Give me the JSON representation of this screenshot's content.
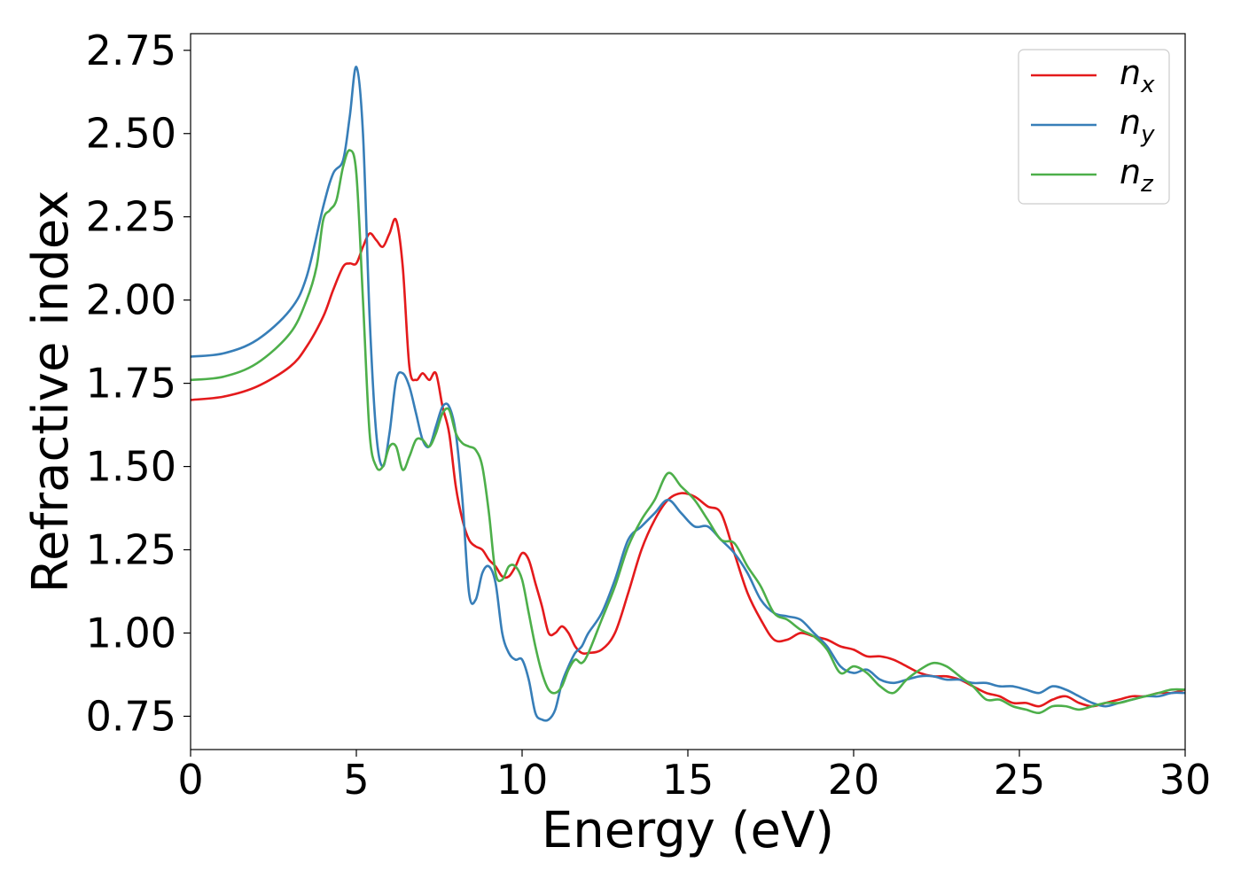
{
  "chart_data": {
    "type": "line",
    "title": "",
    "xlabel": "Energy (eV)",
    "ylabel": "Refractive index",
    "xlim": [
      0,
      30
    ],
    "ylim": [
      0.65,
      2.8
    ],
    "xticks": [
      0,
      5,
      10,
      15,
      20,
      25,
      30
    ],
    "xtick_labels": [
      "0",
      "5",
      "10",
      "15",
      "20",
      "25",
      "30"
    ],
    "yticks": [
      0.75,
      1.0,
      1.25,
      1.5,
      1.75,
      2.0,
      2.25,
      2.5,
      2.75
    ],
    "ytick_labels": [
      "0.75",
      "1.00",
      "1.25",
      "1.50",
      "1.75",
      "2.00",
      "2.25",
      "2.50",
      "2.75"
    ],
    "grid": false,
    "legend_position": "top-right",
    "series": [
      {
        "name": "n_x",
        "label_base": "n",
        "label_sub": "x",
        "color": "#e41a1c",
        "x": [
          0,
          1,
          2,
          3,
          3.5,
          4,
          4.3,
          4.6,
          4.8,
          5.0,
          5.2,
          5.4,
          5.6,
          5.8,
          6.0,
          6.2,
          6.4,
          6.6,
          6.8,
          7.0,
          7.2,
          7.4,
          7.6,
          7.8,
          8.0,
          8.2,
          8.4,
          8.6,
          8.8,
          9.0,
          9.2,
          9.4,
          9.6,
          9.8,
          10.0,
          10.2,
          10.4,
          10.6,
          10.8,
          11.0,
          11.2,
          11.4,
          11.6,
          11.8,
          12.0,
          12.4,
          12.8,
          13.2,
          13.6,
          14.0,
          14.4,
          14.8,
          15.2,
          15.6,
          16.0,
          16.4,
          16.8,
          17.2,
          17.6,
          18.0,
          18.4,
          18.8,
          19.2,
          19.6,
          20.0,
          20.4,
          20.8,
          21.2,
          21.6,
          22.0,
          22.4,
          22.8,
          23.2,
          23.6,
          24.0,
          24.4,
          24.8,
          25.2,
          25.6,
          26.0,
          26.4,
          26.8,
          27.2,
          27.6,
          28.0,
          28.4,
          28.8,
          29.2,
          29.6,
          30.0
        ],
        "y": [
          1.7,
          1.71,
          1.74,
          1.8,
          1.86,
          1.95,
          2.03,
          2.1,
          2.11,
          2.11,
          2.16,
          2.2,
          2.18,
          2.16,
          2.2,
          2.24,
          2.1,
          1.8,
          1.76,
          1.78,
          1.76,
          1.78,
          1.68,
          1.6,
          1.44,
          1.34,
          1.28,
          1.26,
          1.25,
          1.22,
          1.2,
          1.17,
          1.17,
          1.2,
          1.24,
          1.22,
          1.15,
          1.08,
          1.0,
          1.0,
          1.02,
          1.0,
          0.96,
          0.94,
          0.94,
          0.95,
          1.0,
          1.12,
          1.25,
          1.34,
          1.4,
          1.42,
          1.41,
          1.38,
          1.36,
          1.24,
          1.12,
          1.04,
          0.98,
          0.98,
          1.0,
          0.99,
          0.98,
          0.96,
          0.95,
          0.93,
          0.93,
          0.92,
          0.9,
          0.88,
          0.87,
          0.87,
          0.86,
          0.84,
          0.82,
          0.81,
          0.79,
          0.79,
          0.78,
          0.8,
          0.81,
          0.79,
          0.78,
          0.79,
          0.8,
          0.81,
          0.81,
          0.82,
          0.82,
          0.83
        ]
      },
      {
        "name": "n_y",
        "label_base": "n",
        "label_sub": "y",
        "color": "#377eb8",
        "x": [
          0,
          1,
          2,
          3,
          3.5,
          4,
          4.3,
          4.6,
          4.8,
          5.0,
          5.2,
          5.4,
          5.6,
          5.8,
          6.0,
          6.2,
          6.4,
          6.6,
          6.8,
          7.0,
          7.2,
          7.4,
          7.6,
          7.8,
          8.0,
          8.2,
          8.4,
          8.6,
          8.8,
          9.0,
          9.2,
          9.4,
          9.6,
          9.8,
          10.0,
          10.2,
          10.4,
          10.6,
          10.8,
          11.0,
          11.2,
          11.4,
          11.6,
          11.8,
          12.0,
          12.4,
          12.8,
          13.2,
          13.6,
          14.0,
          14.4,
          14.8,
          15.2,
          15.6,
          16.0,
          16.4,
          16.8,
          17.2,
          17.6,
          18.0,
          18.4,
          18.8,
          19.2,
          19.6,
          20.0,
          20.4,
          20.8,
          21.2,
          21.6,
          22.0,
          22.4,
          22.8,
          23.2,
          23.6,
          24.0,
          24.4,
          24.8,
          25.2,
          25.6,
          26.0,
          26.4,
          26.8,
          27.2,
          27.6,
          28.0,
          28.4,
          28.8,
          29.2,
          29.6,
          30.0
        ],
        "y": [
          1.83,
          1.84,
          1.88,
          1.97,
          2.07,
          2.28,
          2.38,
          2.42,
          2.55,
          2.7,
          2.5,
          1.95,
          1.6,
          1.5,
          1.6,
          1.76,
          1.78,
          1.74,
          1.66,
          1.58,
          1.56,
          1.62,
          1.68,
          1.68,
          1.6,
          1.4,
          1.12,
          1.1,
          1.18,
          1.2,
          1.15,
          1.0,
          0.94,
          0.92,
          0.92,
          0.86,
          0.76,
          0.74,
          0.74,
          0.77,
          0.85,
          0.9,
          0.94,
          0.96,
          1.0,
          1.06,
          1.16,
          1.28,
          1.32,
          1.36,
          1.4,
          1.36,
          1.32,
          1.32,
          1.28,
          1.24,
          1.18,
          1.1,
          1.06,
          1.05,
          1.04,
          1.0,
          0.96,
          0.9,
          0.88,
          0.89,
          0.86,
          0.85,
          0.86,
          0.87,
          0.87,
          0.86,
          0.86,
          0.85,
          0.85,
          0.84,
          0.84,
          0.83,
          0.82,
          0.84,
          0.83,
          0.81,
          0.79,
          0.78,
          0.79,
          0.8,
          0.81,
          0.81,
          0.82,
          0.82
        ]
      },
      {
        "name": "n_z",
        "label_base": "n",
        "label_sub": "z",
        "color": "#4daf4a",
        "x": [
          0,
          1,
          2,
          3,
          3.5,
          3.8,
          4.0,
          4.2,
          4.4,
          4.6,
          4.8,
          5.0,
          5.2,
          5.4,
          5.6,
          5.8,
          6.0,
          6.2,
          6.4,
          6.6,
          6.8,
          7.0,
          7.2,
          7.4,
          7.6,
          7.8,
          8.0,
          8.2,
          8.4,
          8.6,
          8.8,
          9.0,
          9.2,
          9.4,
          9.6,
          9.8,
          10.0,
          10.2,
          10.4,
          10.6,
          10.8,
          11.0,
          11.2,
          11.4,
          11.6,
          11.8,
          12.0,
          12.4,
          12.8,
          13.2,
          13.6,
          14.0,
          14.4,
          14.8,
          15.2,
          15.6,
          16.0,
          16.4,
          16.8,
          17.2,
          17.6,
          18.0,
          18.4,
          18.8,
          19.2,
          19.6,
          20.0,
          20.4,
          20.8,
          21.2,
          21.6,
          22.0,
          22.4,
          22.8,
          23.2,
          23.6,
          24.0,
          24.4,
          24.8,
          25.2,
          25.6,
          26.0,
          26.4,
          26.8,
          27.2,
          27.6,
          28.0,
          28.4,
          28.8,
          29.2,
          29.6,
          30.0
        ],
        "y": [
          1.76,
          1.77,
          1.81,
          1.9,
          2.0,
          2.1,
          2.24,
          2.27,
          2.3,
          2.4,
          2.45,
          2.38,
          2.0,
          1.6,
          1.5,
          1.5,
          1.56,
          1.56,
          1.49,
          1.53,
          1.58,
          1.58,
          1.56,
          1.6,
          1.66,
          1.67,
          1.6,
          1.57,
          1.56,
          1.55,
          1.5,
          1.36,
          1.18,
          1.16,
          1.2,
          1.2,
          1.16,
          1.06,
          0.96,
          0.88,
          0.83,
          0.82,
          0.84,
          0.89,
          0.92,
          0.91,
          0.94,
          1.04,
          1.14,
          1.26,
          1.34,
          1.4,
          1.48,
          1.44,
          1.4,
          1.34,
          1.28,
          1.27,
          1.2,
          1.14,
          1.06,
          1.04,
          1.01,
          0.99,
          0.95,
          0.88,
          0.9,
          0.88,
          0.84,
          0.82,
          0.86,
          0.89,
          0.91,
          0.9,
          0.87,
          0.84,
          0.8,
          0.8,
          0.78,
          0.77,
          0.76,
          0.78,
          0.78,
          0.77,
          0.78,
          0.79,
          0.79,
          0.8,
          0.81,
          0.82,
          0.83,
          0.83
        ]
      }
    ]
  }
}
